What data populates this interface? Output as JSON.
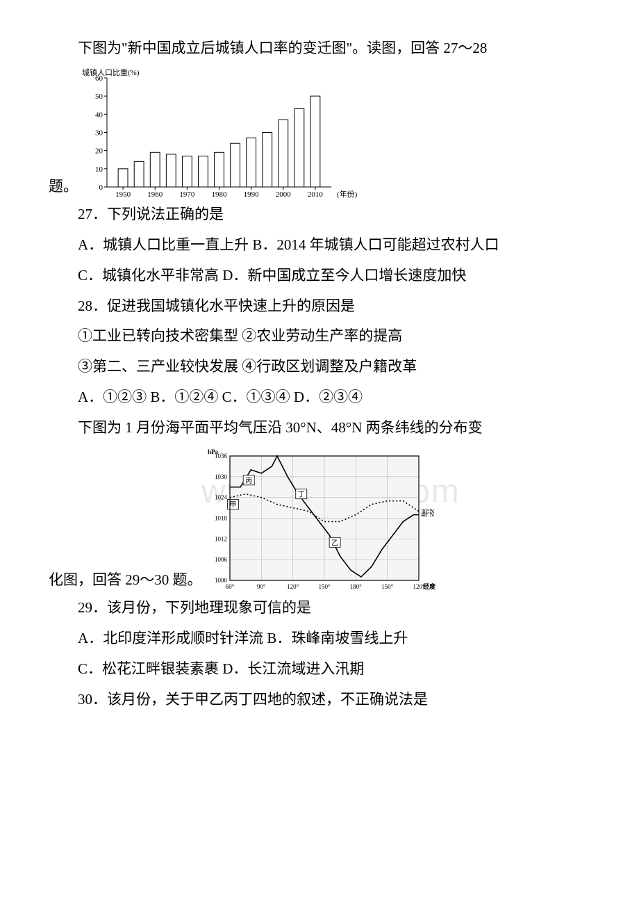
{
  "intro1_a": "下图为\"新中国成立后城镇人口率的变迁图\"。读图，回答 27～28",
  "intro1_b": "题。",
  "chart1": {
    "type": "bar",
    "ylabel": "城镇人口比重(%)",
    "xlabel": "(年份)",
    "xmin": 1945,
    "xmax": 2015,
    "ymin": 0,
    "ymax": 60,
    "ytick_step": 10,
    "xticks": [
      1950,
      1960,
      1970,
      1980,
      1990,
      2000,
      2010
    ],
    "years": [
      1950,
      1955,
      1960,
      1965,
      1970,
      1975,
      1980,
      1985,
      1990,
      1995,
      2000,
      2005,
      2010
    ],
    "values": [
      10,
      14,
      19,
      18,
      17,
      17,
      19,
      24,
      27,
      30,
      37,
      43,
      50
    ],
    "bar_color": "#ffffff",
    "bar_outline": "#000000",
    "axis_color": "#000000",
    "grid": false,
    "bar_width_years": 3,
    "font_size_label": 11
  },
  "q27": "27．下列说法正确的是",
  "q27a": "A．城镇人口比重一直上升    B．2014 年城镇人口可能超过农村人口",
  "q27c": "C．城镇化水平非常高         D．新中国成立至今人口增长速度加快",
  "q28": "28．促进我国城镇化水平快速上升的原因是",
  "q28_1": "①工业已转向技术密集型  ②农业劳动生产率的提高",
  "q28_2": "③第二、三产业较快发展  ④行政区划调整及户籍改革",
  "q28_opts": "A．①②③        B．①②④        C．①③④        D．②③④",
  "intro2_a": "下图为 1 月份海平面平均气压沿 30°N、48°N 两条纬线的分布变",
  "intro2_b": "化图，回答 29～30 题。",
  "chart2": {
    "type": "line",
    "ylabel": "hPa",
    "xlabel": "经度",
    "xmin": 60,
    "xmax": 240,
    "ymin": 1000,
    "ymax": 1036,
    "ytick_step": 6,
    "xticks": [
      60,
      90,
      120,
      150,
      180,
      210,
      240
    ],
    "xtick_labels": [
      "60°",
      "90°",
      "120°",
      "150°",
      "180°",
      "150°",
      "120°"
    ],
    "grid_color": "#aaaaaa",
    "background_color": "#f5f5f5",
    "axis_color": "#000000",
    "font_size_label": 9,
    "series": [
      {
        "name": "30°N",
        "label": "30°N",
        "style": "dotted",
        "color": "#000000",
        "points": [
          [
            60,
            1024
          ],
          [
            75,
            1025
          ],
          [
            90,
            1024
          ],
          [
            105,
            1022
          ],
          [
            120,
            1021
          ],
          [
            135,
            1020
          ],
          [
            150,
            1017
          ],
          [
            165,
            1017
          ],
          [
            180,
            1019
          ],
          [
            195,
            1022
          ],
          [
            210,
            1023
          ],
          [
            225,
            1023
          ],
          [
            240,
            1020
          ]
        ]
      },
      {
        "name": "48°N",
        "label": "48°N",
        "style": "solid",
        "color": "#000000",
        "points": [
          [
            60,
            1027
          ],
          [
            70,
            1027
          ],
          [
            80,
            1032
          ],
          [
            90,
            1031
          ],
          [
            100,
            1033
          ],
          [
            105,
            1036
          ],
          [
            115,
            1030
          ],
          [
            125,
            1025
          ],
          [
            135,
            1021
          ],
          [
            145,
            1017
          ],
          [
            155,
            1013
          ],
          [
            165,
            1007
          ],
          [
            175,
            1003
          ],
          [
            185,
            1001
          ],
          [
            195,
            1004
          ],
          [
            205,
            1009
          ],
          [
            215,
            1013
          ],
          [
            225,
            1017
          ],
          [
            235,
            1019
          ],
          [
            240,
            1019
          ]
        ]
      }
    ],
    "markers": [
      {
        "label": "甲",
        "x": 63,
        "y": 1022
      },
      {
        "label": "丙",
        "x": 78,
        "y": 1029
      },
      {
        "label": "丁",
        "x": 128,
        "y": 1025
      },
      {
        "label": "乙",
        "x": 160,
        "y": 1011
      }
    ]
  },
  "q29": "29．该月份，下列地理现象可信的是",
  "q29a": "A．北印度洋形成顺时针洋流          B．珠峰南坡雪线上升",
  "q29c": "C．松花江畔银装素裹                D．长江流域进入汛期",
  "q30": "30．该月份，关于甲乙丙丁四地的叙述，不正确说法是",
  "watermark": "www.bdocx.com"
}
